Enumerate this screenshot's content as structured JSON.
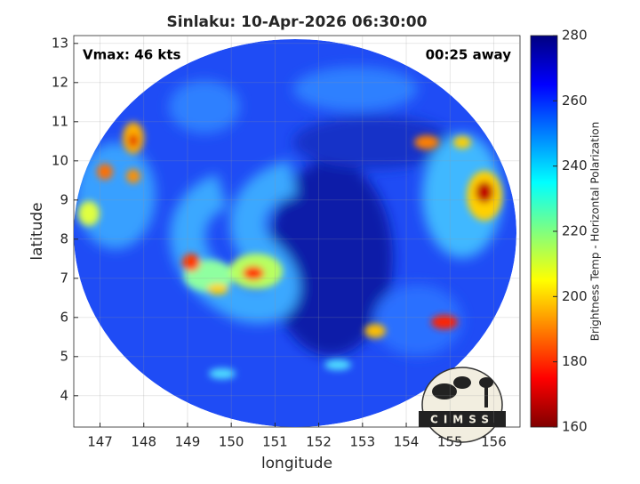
{
  "chart_data": {
    "type": "image",
    "title": "Sinlaku: 10-Apr-2026 06:30:00",
    "xlabel": "longitude",
    "ylabel": "latitude",
    "xlim": [
      146.4,
      156.6
    ],
    "ylim": [
      3.2,
      13.2
    ],
    "xticks": [
      147,
      148,
      149,
      150,
      151,
      152,
      153,
      154,
      155,
      156
    ],
    "yticks": [
      4,
      5,
      6,
      7,
      8,
      9,
      10,
      11,
      12,
      13
    ],
    "grid": true,
    "annotations": {
      "top_left": "Vmax: 46 kts",
      "top_right": "00:25 away"
    },
    "colorbar": {
      "label": "Brightness Temp - Horizontal Polarization",
      "colormap": "jet",
      "lim": [
        160,
        280
      ],
      "ticks": [
        160,
        180,
        200,
        220,
        240,
        260,
        280
      ]
    },
    "logo": "CIMSS"
  }
}
